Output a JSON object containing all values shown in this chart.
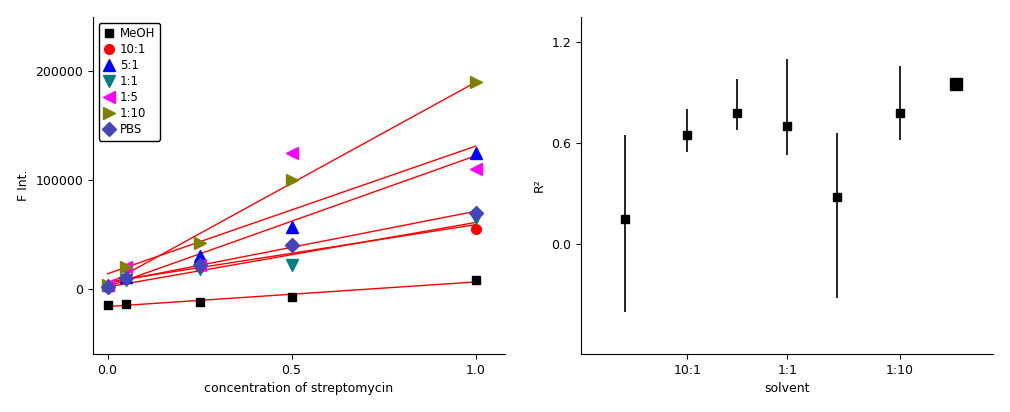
{
  "left": {
    "xlabel": "concentration of streptomycin",
    "ylabel": "F Int.",
    "series": [
      {
        "label": "MeOH",
        "color": "black",
        "marker": "s",
        "x": [
          0.0,
          0.05,
          0.25,
          0.5,
          1.0
        ],
        "y": [
          -15000,
          -14000,
          -12000,
          -8000,
          8000
        ]
      },
      {
        "label": "10:1",
        "color": "red",
        "marker": "o",
        "x": [
          0.0,
          0.05,
          0.25,
          0.5,
          1.0
        ],
        "y": [
          2000,
          9000,
          20000,
          40000,
          55000
        ]
      },
      {
        "label": "5:1",
        "color": "blue",
        "marker": "^",
        "x": [
          0.0,
          0.05,
          0.25,
          0.5,
          1.0
        ],
        "y": [
          3000,
          11000,
          30000,
          57000,
          125000
        ]
      },
      {
        "label": "1:1",
        "color": "teal",
        "marker": "v",
        "x": [
          0.0,
          0.05,
          0.25,
          0.5,
          1.0
        ],
        "y": [
          2000,
          8000,
          18000,
          22000,
          65000
        ]
      },
      {
        "label": "1:5",
        "color": "magenta",
        "marker": "<",
        "x": [
          0.0,
          0.05,
          0.25,
          0.5,
          1.0
        ],
        "y": [
          3000,
          20000,
          22000,
          125000,
          110000
        ]
      },
      {
        "label": "1:10",
        "color": "olive",
        "marker": ">",
        "x": [
          0.0,
          0.05,
          0.25,
          0.5,
          1.0
        ],
        "y": [
          3000,
          20000,
          42000,
          100000,
          190000
        ]
      },
      {
        "label": "PBS",
        "color": "#4444bb",
        "marker": "D",
        "x": [
          0.0,
          0.05,
          0.25,
          0.5,
          1.0
        ],
        "y": [
          2000,
          10000,
          22000,
          40000,
          70000
        ]
      }
    ],
    "ylim": [
      -60000,
      250000
    ],
    "xlim": [
      -0.04,
      1.08
    ],
    "yticks": [
      0,
      100000,
      200000
    ],
    "xticks": [
      0.0,
      0.5,
      1.0
    ]
  },
  "right": {
    "xlabel": "solvent",
    "ylabel": "R²",
    "x_positions": [
      0.7,
      1.7,
      2.5,
      3.3,
      4.1,
      5.1,
      6.0
    ],
    "y_values": [
      0.15,
      0.65,
      0.78,
      0.7,
      0.28,
      0.78,
      0.95
    ],
    "y_err_low": [
      0.55,
      0.1,
      0.1,
      0.17,
      0.6,
      0.16,
      0.0
    ],
    "y_err_high": [
      0.5,
      0.15,
      0.2,
      0.4,
      0.38,
      0.28,
      0.0
    ],
    "ylim": [
      -0.65,
      1.35
    ],
    "yticks": [
      0.0,
      0.6,
      1.2
    ],
    "x_tick_positions": [
      1.7,
      3.3,
      5.1
    ],
    "x_tick_labels": [
      "10:1",
      "1:1",
      "1:10"
    ],
    "xlim": [
      0.0,
      6.6
    ]
  }
}
